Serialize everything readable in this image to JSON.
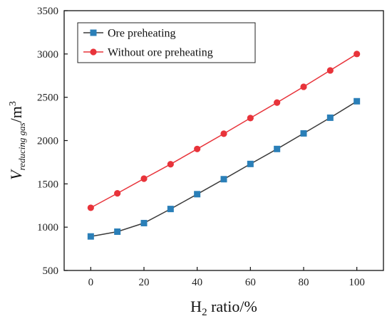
{
  "chart_data": {
    "type": "line",
    "x": [
      0,
      10,
      20,
      30,
      40,
      50,
      60,
      70,
      80,
      90,
      100
    ],
    "series": [
      {
        "name": "Ore preheating",
        "color": "#2a7fb8",
        "marker": "square",
        "line_color": "#3a3a3a",
        "values": [
          893,
          948,
          1047,
          1210,
          1381,
          1554,
          1730,
          1903,
          2083,
          2264,
          2454
        ]
      },
      {
        "name": "Without ore preheating",
        "color": "#e8333a",
        "marker": "circle",
        "line_color": "#e8333a",
        "values": [
          1224,
          1391,
          1560,
          1727,
          1903,
          2079,
          2260,
          2439,
          2621,
          2810,
          3000
        ]
      }
    ],
    "xlabel": {
      "main": "H",
      "sub": "2",
      "rest": " ratio/%"
    },
    "ylabel": {
      "main": "V",
      "sub": "reducing gas",
      "rest": "/m",
      "sup": "3"
    },
    "xlim": [
      -10,
      110
    ],
    "ylim": [
      500,
      3500
    ],
    "xticks": [
      0,
      20,
      40,
      60,
      80,
      100
    ],
    "yticks": [
      500,
      1000,
      1500,
      2000,
      2500,
      3000,
      3500
    ],
    "grid": false,
    "legend_position": "top-left"
  }
}
